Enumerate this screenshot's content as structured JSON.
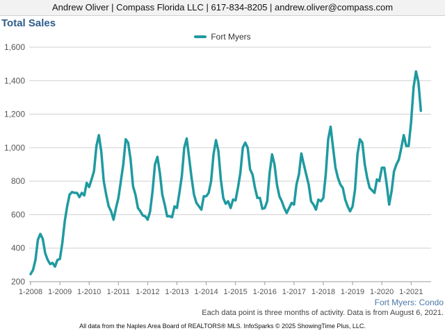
{
  "header": {
    "banner": "Andrew Oliver | Compass Florida LLC | 617-834-8205 | andrew.oliver@compass.com"
  },
  "chart_data": {
    "type": "line",
    "title": "Total Sales",
    "xlabel": "",
    "ylabel": "",
    "ylim": [
      200,
      1600
    ],
    "yticks": [
      200,
      400,
      600,
      800,
      1000,
      1200,
      1400,
      1600
    ],
    "grid": true,
    "legend_position": "top-center",
    "x_tick_labels": [
      "1-2008",
      "1-2009",
      "1-2010",
      "1-2011",
      "1-2012",
      "1-2013",
      "1-2014",
      "1-2015",
      "1-2016",
      "1-2017",
      "1-2018",
      "1-2019",
      "1-2020",
      "1-2021"
    ],
    "series": [
      {
        "name": "Fort Myers",
        "color": "#1f9aa0",
        "start": "1-2008",
        "frequency": "monthly",
        "values": [
          245,
          270,
          330,
          450,
          485,
          455,
          370,
          330,
          305,
          312,
          290,
          330,
          335,
          430,
          560,
          650,
          720,
          735,
          730,
          730,
          705,
          730,
          715,
          790,
          765,
          810,
          860,
          1010,
          1075,
          975,
          800,
          720,
          650,
          620,
          570,
          640,
          700,
          800,
          900,
          1050,
          1030,
          930,
          770,
          720,
          640,
          620,
          595,
          590,
          570,
          620,
          740,
          900,
          945,
          850,
          720,
          660,
          590,
          590,
          585,
          650,
          640,
          730,
          830,
          1000,
          1055,
          940,
          820,
          720,
          670,
          650,
          630,
          710,
          710,
          730,
          800,
          960,
          1045,
          980,
          810,
          700,
          665,
          680,
          640,
          690,
          685,
          760,
          850,
          1000,
          1030,
          1000,
          870,
          840,
          760,
          700,
          700,
          635,
          640,
          680,
          850,
          960,
          900,
          780,
          710,
          680,
          640,
          610,
          640,
          670,
          660,
          780,
          840,
          965,
          900,
          840,
          780,
          680,
          660,
          630,
          690,
          680,
          700,
          840,
          1050,
          1125,
          1000,
          880,
          820,
          780,
          760,
          690,
          650,
          620,
          650,
          750,
          960,
          1050,
          1030,
          900,
          820,
          760,
          745,
          730,
          810,
          800,
          880,
          880,
          780,
          660,
          740,
          860,
          900,
          930,
          1000,
          1075,
          1010,
          1010,
          1150,
          1360,
          1455,
          1390,
          1220
        ]
      }
    ]
  },
  "series_label": "Fort Myers: Condo",
  "note": "Each data point is three months of activity. Data is from August 6, 2021.",
  "footer": "All data from the Naples Area Board of REALTORS® MLS. InfoSparks © 2025 ShowingTime Plus, LLC."
}
